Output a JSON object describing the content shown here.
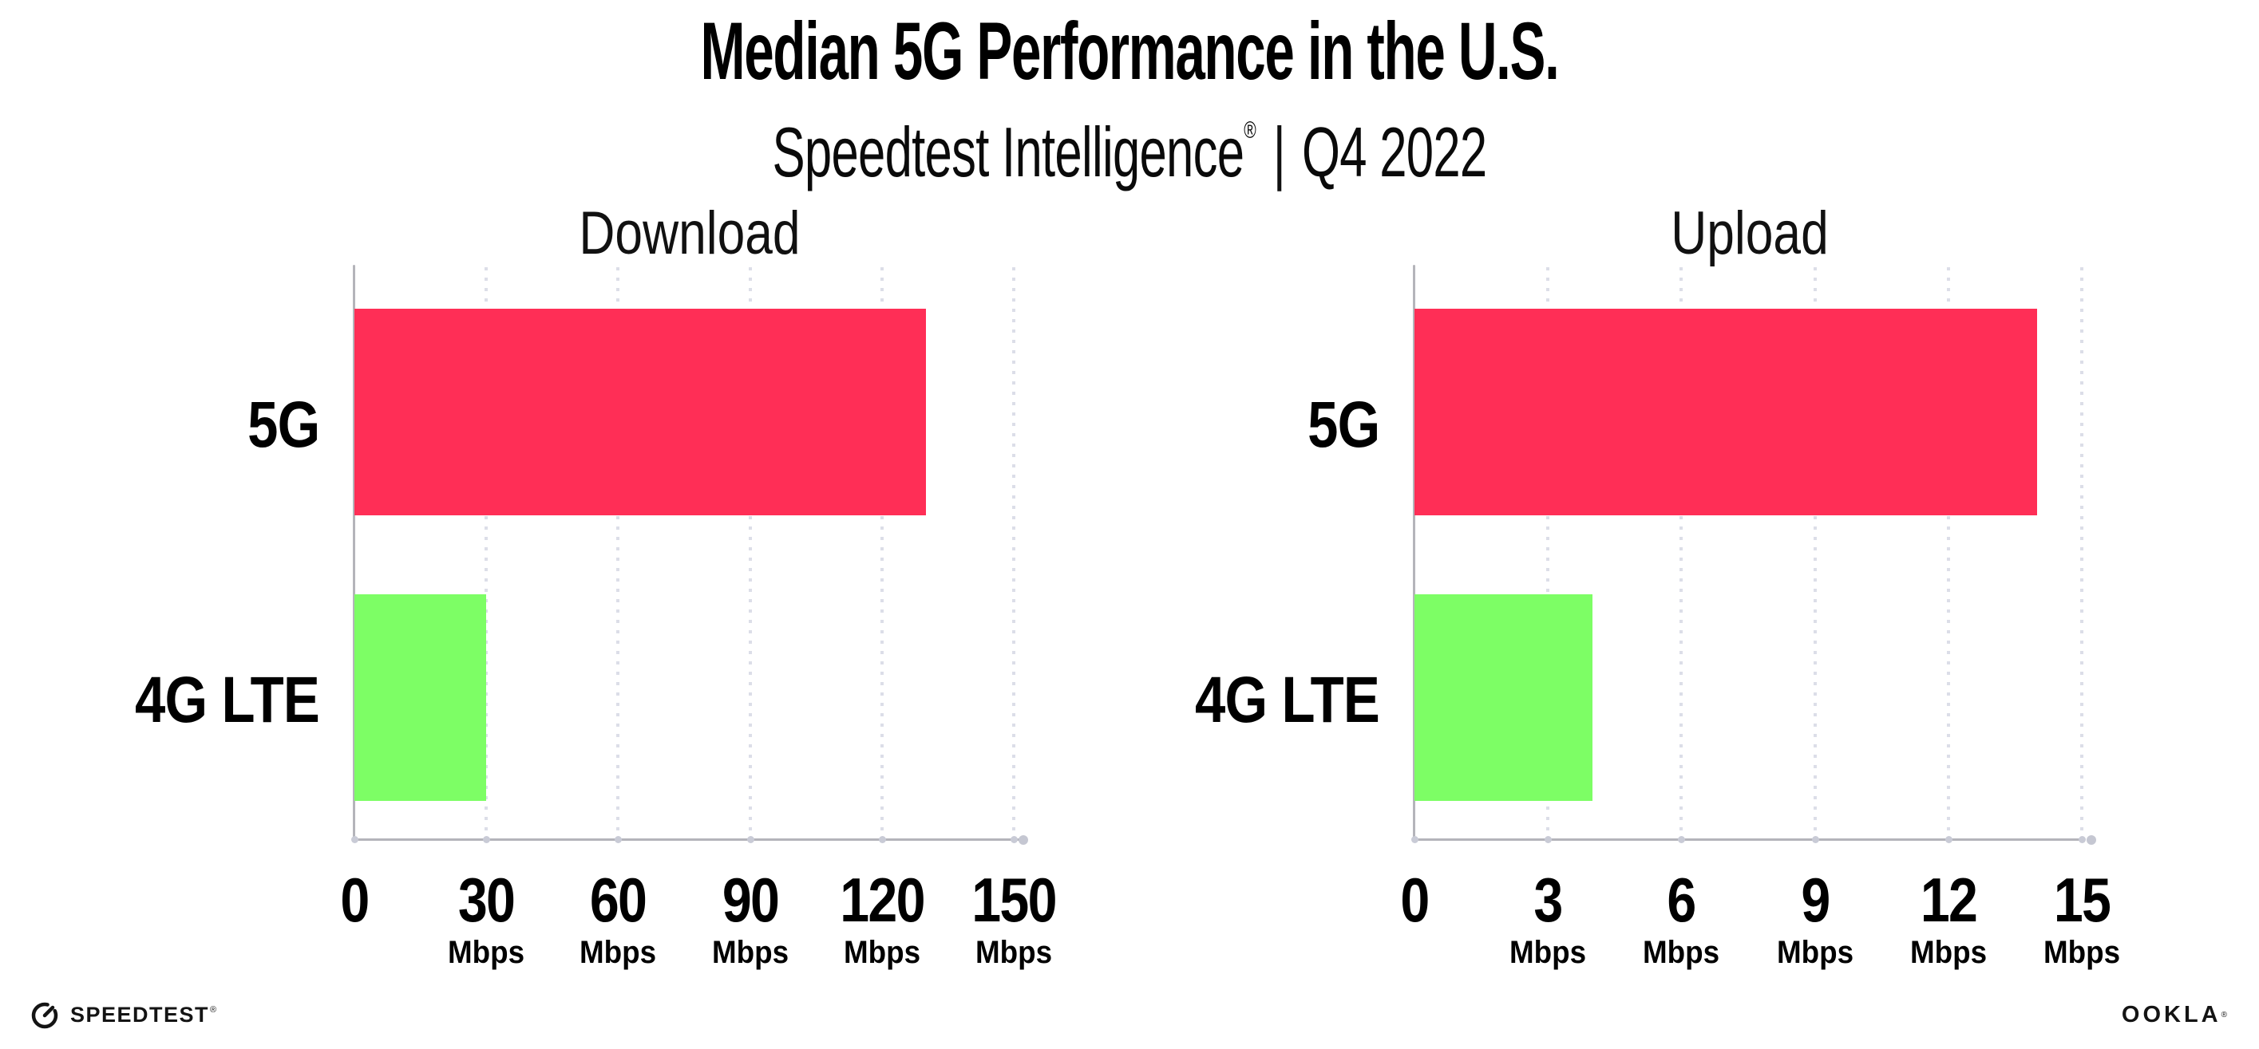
{
  "header": {
    "title": "Median 5G Performance in the U.S.",
    "subtitle_brand": "Speedtest Intelligence",
    "subtitle_reg_mark": "®",
    "subtitle_separator": "|",
    "subtitle_period": "Q4 2022"
  },
  "colors": {
    "bar_5g": "#FF2E56",
    "bar_4g_lte": "#7DFE65",
    "axis": "#B4B4BA",
    "gridline": "#DCDEE8",
    "background": "#FFFFFF",
    "text": "#000000"
  },
  "chart_data": [
    {
      "type": "bar",
      "orientation": "horizontal",
      "title": "Download",
      "categories": [
        "5G",
        "4G LTE"
      ],
      "values": [
        130,
        30
      ],
      "unit": "Mbps",
      "xlim": [
        0,
        150
      ],
      "xticks": [
        0,
        30,
        60,
        90,
        120,
        150
      ],
      "xtick_unit_label": "Mbps",
      "bar_colors": [
        "#FF2E56",
        "#7DFE65"
      ],
      "grid": "vertical-dotted",
      "legend": "none"
    },
    {
      "type": "bar",
      "orientation": "horizontal",
      "title": "Upload",
      "categories": [
        "5G",
        "4G LTE"
      ],
      "values": [
        14,
        4
      ],
      "unit": "Mbps",
      "xlim": [
        0,
        15
      ],
      "xticks": [
        0,
        3,
        6,
        9,
        12,
        15
      ],
      "xtick_unit_label": "Mbps",
      "bar_colors": [
        "#FF2E56",
        "#7DFE65"
      ],
      "grid": "vertical-dotted",
      "legend": "none"
    }
  ],
  "footer": {
    "speedtest_wordmark": "SPEEDTEST",
    "speedtest_reg_mark": "®",
    "speedtest_icon": "speedtest-gauge-icon",
    "ookla_wordmark": "OOKLA",
    "ookla_reg_mark": "®"
  }
}
